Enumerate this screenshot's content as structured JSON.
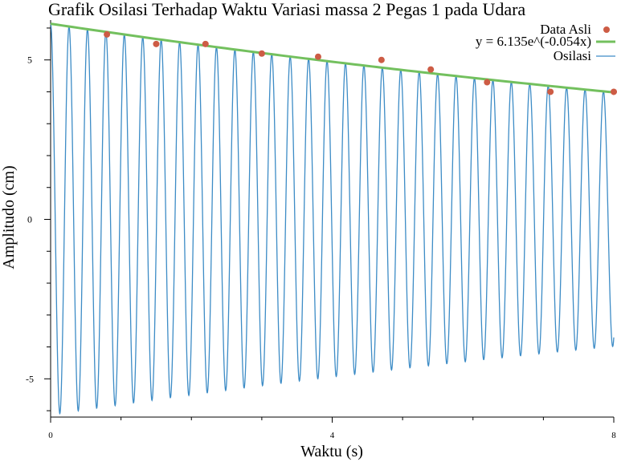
{
  "chart_data": {
    "type": "line",
    "title": "Grafik Osilasi Terhadap Waktu Variasi massa 2 Pegas 1 pada Udara",
    "xlabel": "Waktu (s)",
    "ylabel": "Amplitudo (cm)",
    "xlim": [
      0,
      8
    ],
    "ylim": [
      -6.2,
      6.2
    ],
    "x_ticks": [
      0,
      4,
      8
    ],
    "y_ticks": [
      -5,
      0,
      5
    ],
    "grid": false,
    "legend_position": "top-right",
    "series": [
      {
        "name": "Data Asli",
        "kind": "scatter",
        "color": "#cd5c45",
        "x": [
          0.8,
          1.5,
          2.2,
          3.0,
          3.8,
          4.7,
          5.4,
          6.2,
          7.1,
          8.0
        ],
        "y": [
          5.8,
          5.5,
          5.5,
          5.2,
          5.1,
          5.0,
          4.7,
          4.3,
          4.0,
          4.0
        ]
      },
      {
        "name": "y = 6.135e^(-0.054x)",
        "kind": "line",
        "color": "#73c05e",
        "amplitude": 6.135,
        "decay": 0.054
      },
      {
        "name": "Osilasi",
        "kind": "line",
        "color": "#3d8cc6",
        "amplitude": 6.135,
        "decay": 0.054,
        "frequency_hz": 3.82,
        "samples": 2400
      }
    ]
  }
}
